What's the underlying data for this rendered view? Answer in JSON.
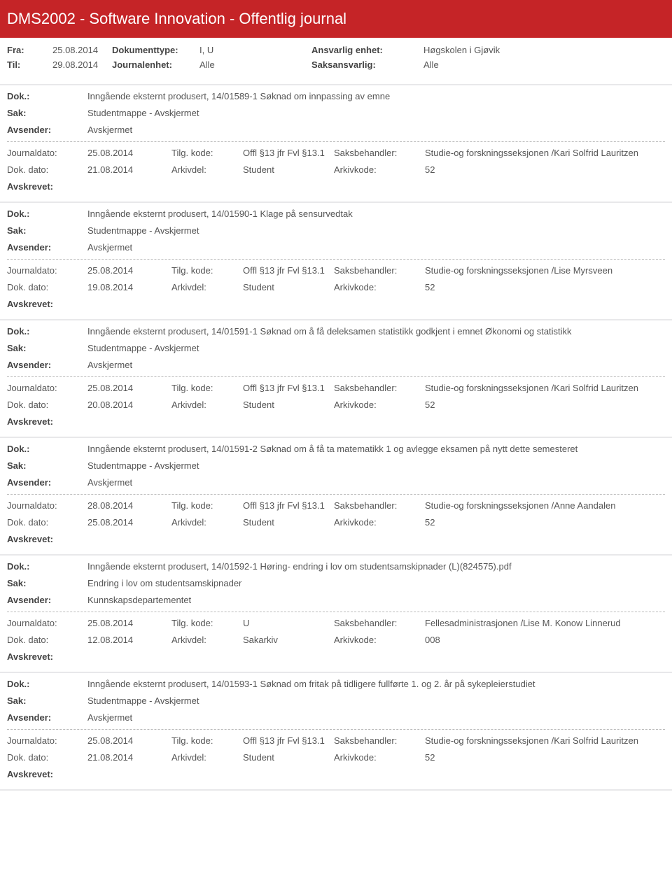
{
  "header": {
    "title": "DMS2002 - Software Innovation - Offentlig journal"
  },
  "meta": {
    "fra_label": "Fra:",
    "fra": "25.08.2014",
    "til_label": "Til:",
    "til": "29.08.2014",
    "doktype_label": "Dokumenttype:",
    "doktype": "I, U",
    "journalenhet_label": "Journalenhet:",
    "journalenhet": "Alle",
    "ansvarlig_label": "Ansvarlig enhet:",
    "ansvarlig": "Høgskolen i Gjøvik",
    "saksansvarlig_label": "Saksansvarlig:",
    "saksansvarlig": "Alle"
  },
  "labels": {
    "dok": "Dok.:",
    "sak": "Sak:",
    "avsender": "Avsender:",
    "journaldato": "Journaldato:",
    "dokdato": "Dok. dato:",
    "tilgkode": "Tilg. kode:",
    "arkivdel": "Arkivdel:",
    "saksbehandler": "Saksbehandler:",
    "arkivkode": "Arkivkode:",
    "avskrevet": "Avskrevet:"
  },
  "entries": [
    {
      "dok": "Inngående eksternt produsert, 14/01589-1 Søknad om innpassing av emne",
      "sak": "Studentmappe - Avskjermet",
      "avsender": "Avskjermet",
      "journaldato": "25.08.2014",
      "tilgkode": "Offl §13 jfr Fvl §13.1",
      "saksbehandler": "Studie-og forskningsseksjonen /Kari Solfrid Lauritzen",
      "dokdato": "21.08.2014",
      "arkivdel": "Student",
      "arkivkode": "52"
    },
    {
      "dok": "Inngående eksternt produsert, 14/01590-1 Klage på sensurvedtak",
      "sak": "Studentmappe - Avskjermet",
      "avsender": "Avskjermet",
      "journaldato": "25.08.2014",
      "tilgkode": "Offl §13 jfr Fvl §13.1",
      "saksbehandler": "Studie-og forskningsseksjonen /Lise Myrsveen",
      "dokdato": "19.08.2014",
      "arkivdel": "Student",
      "arkivkode": "52"
    },
    {
      "dok": "Inngående eksternt produsert, 14/01591-1 Søknad om å få deleksamen statistikk godkjent i emnet Økonomi og statistikk",
      "sak": "Studentmappe - Avskjermet",
      "avsender": "Avskjermet",
      "journaldato": "25.08.2014",
      "tilgkode": "Offl §13 jfr Fvl §13.1",
      "saksbehandler": "Studie-og forskningsseksjonen /Kari Solfrid Lauritzen",
      "dokdato": "20.08.2014",
      "arkivdel": "Student",
      "arkivkode": "52"
    },
    {
      "dok": "Inngående eksternt produsert, 14/01591-2 Søknad om å få ta  matematikk 1 og avlegge eksamen på nytt dette semesteret",
      "sak": "Studentmappe - Avskjermet",
      "avsender": "Avskjermet",
      "journaldato": "28.08.2014",
      "tilgkode": "Offl §13 jfr Fvl §13.1",
      "saksbehandler": "Studie-og forskningsseksjonen /Anne Aandalen",
      "dokdato": "25.08.2014",
      "arkivdel": "Student",
      "arkivkode": "52"
    },
    {
      "dok": "Inngående eksternt produsert, 14/01592-1 Høring- endring i lov om studentsamskipnader (L)(824575).pdf",
      "sak": "Endring i lov om studentsamskipnader",
      "avsender": "Kunnskapsdepartementet",
      "journaldato": "25.08.2014",
      "tilgkode": "U",
      "saksbehandler": "Fellesadministrasjonen /Lise M. Konow Linnerud",
      "dokdato": "12.08.2014",
      "arkivdel": "Sakarkiv",
      "arkivkode": "008"
    },
    {
      "dok": "Inngående eksternt produsert, 14/01593-1 Søknad om fritak på tidligere fullførte 1. og 2. år på sykepleierstudiet",
      "sak": "Studentmappe - Avskjermet",
      "avsender": "Avskjermet",
      "journaldato": "25.08.2014",
      "tilgkode": "Offl §13 jfr Fvl §13.1",
      "saksbehandler": "Studie-og forskningsseksjonen /Kari Solfrid Lauritzen",
      "dokdato": "21.08.2014",
      "arkivdel": "Student",
      "arkivkode": "52"
    }
  ]
}
